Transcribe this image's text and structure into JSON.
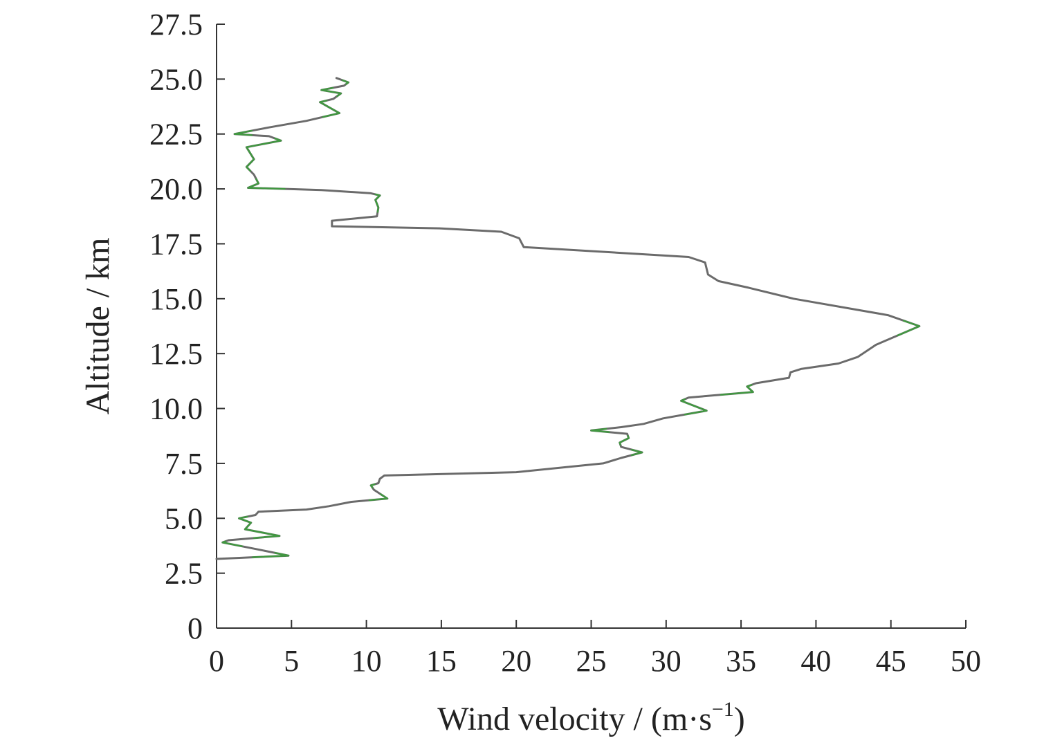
{
  "chart_data": {
    "type": "line",
    "xlabel": "Wind velocity / (m·s",
    "xlabel_sup": "−1",
    "xlabel_close": ")",
    "ylabel": "Altitude / km",
    "xlim": [
      0,
      50
    ],
    "ylim": [
      0,
      27.5
    ],
    "x_ticks": [
      "0",
      "5",
      "10",
      "15",
      "20",
      "25",
      "30",
      "35",
      "40",
      "45",
      "50"
    ],
    "y_ticks": [
      "0",
      "2.5",
      "5.0",
      "7.5",
      "10.0",
      "12.5",
      "15.0",
      "17.5",
      "20.0",
      "22.5",
      "25.0",
      "27.5"
    ],
    "grid": false,
    "series": [
      {
        "line_color": "#6b6b6b",
        "highlight_color": "#3aa03a",
        "x": [
          0,
          4.8,
          3.0,
          0.4,
          0.8,
          4.2,
          1.9,
          2.3,
          1.5,
          2.6,
          2.8,
          6.0,
          7.5,
          9.0,
          11.4,
          10.5,
          10.3,
          10.8,
          10.9,
          11.2,
          20.0,
          25.8,
          27.0,
          28.4,
          27.0,
          26.9,
          27.5,
          27.4,
          25.0,
          27.0,
          28.5,
          29.8,
          32.7,
          31.0,
          31.5,
          35.8,
          35.4,
          36.0,
          38.2,
          38.3,
          39.0,
          41.5,
          42.8,
          44.0,
          46.9,
          44.8,
          38.5,
          35.5,
          33.5,
          32.8,
          32.6,
          31.5,
          20.5,
          20.2,
          19.0,
          15.0,
          7.7,
          7.7,
          10.7,
          10.8,
          10.6,
          10.9,
          10.3,
          7.0,
          2.1,
          2.8,
          2.5,
          2.0,
          2.5,
          2.0,
          4.3,
          3.5,
          1.2,
          3.5,
          6.0,
          8.2,
          6.9,
          7.8,
          8.3,
          7.0,
          8.5,
          8.8,
          8.0
        ],
        "y": [
          3.15,
          3.3,
          3.55,
          3.9,
          4.0,
          4.2,
          4.5,
          4.8,
          5.0,
          5.15,
          5.3,
          5.4,
          5.55,
          5.75,
          5.9,
          6.3,
          6.5,
          6.6,
          6.8,
          6.95,
          7.1,
          7.5,
          7.75,
          8.0,
          8.25,
          8.45,
          8.65,
          8.85,
          9.0,
          9.15,
          9.3,
          9.55,
          9.9,
          10.35,
          10.5,
          10.75,
          11.0,
          11.15,
          11.4,
          11.65,
          11.8,
          12.05,
          12.35,
          12.9,
          13.75,
          14.25,
          15.0,
          15.5,
          15.8,
          16.1,
          16.65,
          16.9,
          17.35,
          17.75,
          18.05,
          18.2,
          18.3,
          18.55,
          18.75,
          19.15,
          19.5,
          19.7,
          19.8,
          19.95,
          20.05,
          20.25,
          20.65,
          21.0,
          21.35,
          21.9,
          22.2,
          22.4,
          22.5,
          22.8,
          23.1,
          23.45,
          23.95,
          24.1,
          24.35,
          24.5,
          24.7,
          24.85,
          25.05
        ]
      }
    ]
  }
}
